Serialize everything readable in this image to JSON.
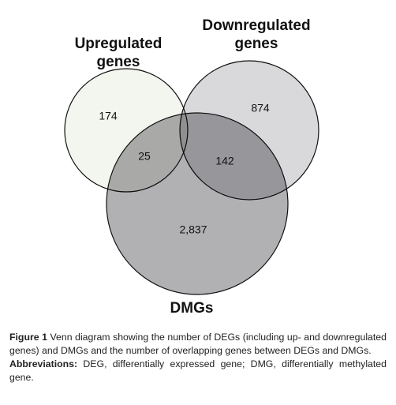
{
  "diagram": {
    "sets": [
      {
        "label_lines": [
          "Upregulated",
          "genes"
        ]
      },
      {
        "label_lines": [
          "Downregulated",
          "genes"
        ]
      },
      {
        "label_lines": [
          "DMGs"
        ]
      }
    ],
    "regions": {
      "upregulated_only": "174",
      "downregulated_only": "874",
      "upregulated_and_dmgs": "25",
      "downregulated_and_dmgs": "142",
      "dmgs_only": "2,837"
    }
  },
  "caption": {
    "label": "Figure 1",
    "text": "Venn diagram showing the number of DEGs (including up- and downregulated genes) and DMGs and the number of overlapping genes between DEGs and DMGs.",
    "abbreviations_label": "Abbreviations:",
    "abbreviations_text": "DEG, differentially expressed gene; DMG, differentially methylated gene."
  }
}
